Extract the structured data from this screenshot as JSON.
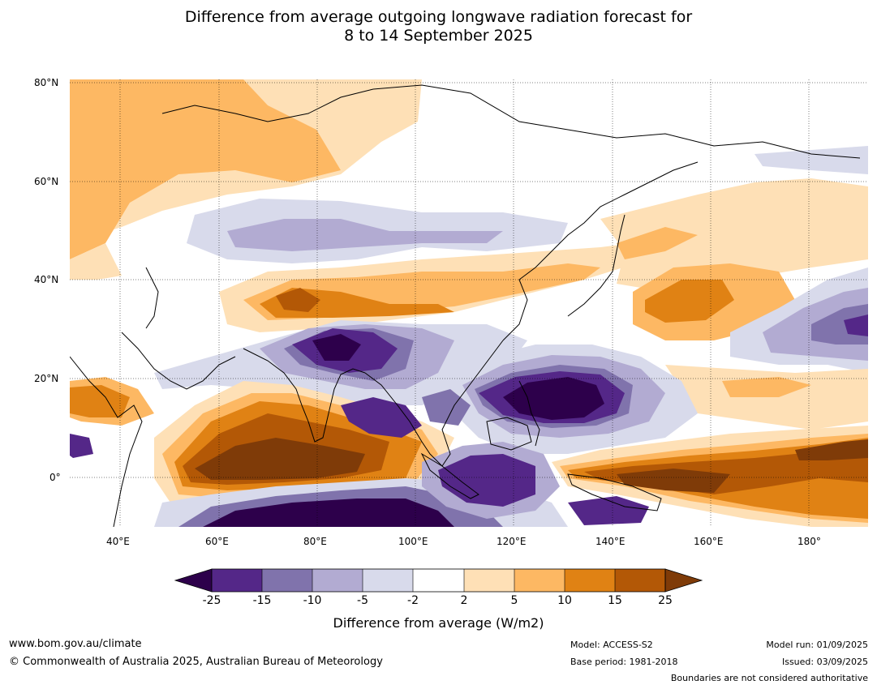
{
  "title": {
    "line1": "Difference from average outgoing longwave radiation forecast for",
    "line2": "8 to 14 September 2025"
  },
  "axes": {
    "lat_labels": [
      "80°N",
      "60°N",
      "40°N",
      "20°N",
      "0°"
    ],
    "lon_labels": [
      "40°E",
      "60°E",
      "80°E",
      "100°E",
      "120°E",
      "140°E",
      "160°E",
      "180°"
    ]
  },
  "colors": {
    "neg25": "#2d004b",
    "neg15": "#542788",
    "neg10": "#8073ac",
    "neg5": "#b2abd2",
    "neg2": "#d8daeb",
    "neutral": "#ffffff",
    "pos2": "#fee0b6",
    "pos5": "#fdb863",
    "pos10": "#e08214",
    "pos15": "#b35806",
    "pos25": "#7f3b08"
  },
  "colorbar": {
    "ticks": [
      "-25",
      "-15",
      "-10",
      "-5",
      "-2",
      "2",
      "5",
      "10",
      "15",
      "25"
    ],
    "label": "Difference from average (W/m2)"
  },
  "footer": {
    "website": "www.bom.gov.au/climate",
    "copyright": "© Commonwealth of Australia 2025, Australian Bureau of Meteorology",
    "model": "Model: ACCESS-S2",
    "base_period": "Base period: 1981-2018",
    "model_run": "Model run: 01/09/2025",
    "issued": "Issued: 03/09/2025",
    "disclaimer": "Boundaries are not considered authoritative"
  }
}
